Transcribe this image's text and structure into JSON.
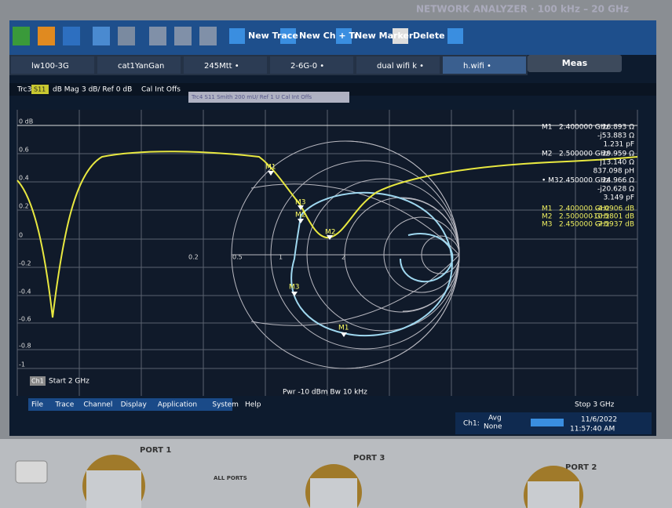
{
  "header": "NETWORK ANALYZER · 100 kHz – 20 GHz",
  "toolbar": {
    "buttons": [
      "New Trace",
      "New Ch + Tr",
      "New Marker",
      "Delete"
    ],
    "meas": "Meas"
  },
  "tabs": [
    "lw100-3G",
    "cat1YanGan",
    "245Mtt •",
    "2-6G-0 •",
    "dual wifi k •",
    "h.wifi •"
  ],
  "trace_info": {
    "trace": "Trc3",
    "param": "S11",
    "format": "dB Mag",
    "scale": "3 dB/ Ref 0 dB",
    "cal": "Cal Int Offs",
    "overlay": "Trc4 S11 Smith 200 mU/ Ref 1 U Cal Int Offs"
  },
  "y_labels": [
    "0 dB",
    "0.6",
    "0.4",
    "0.2",
    "0",
    "-0.2",
    "-0.4",
    "-0.6",
    "-0.8",
    "-1"
  ],
  "smith_labels": [
    "0.2",
    "0.5",
    "1",
    "2"
  ],
  "trace_markers": [
    "M1",
    "M3",
    "M2",
    "M2",
    "M3",
    "M1"
  ],
  "readout_smith": [
    {
      "marker": "M1",
      "freq": "2.400000 GHz",
      "lines": [
        "26.893 Ω",
        "-j53.883 Ω",
        "1.231 pF"
      ]
    },
    {
      "marker": "M2",
      "freq": "2.500000 GHz",
      "lines": [
        "29.959 Ω",
        "j13.140 Ω",
        "837.098 pH"
      ]
    },
    {
      "marker": "• M3",
      "freq": "2.450000 GHz",
      "lines": [
        "24.966 Ω",
        "-j20.628 Ω",
        "3.149 pF"
      ]
    }
  ],
  "readout_db": [
    {
      "marker": "M1",
      "freq": "2.400000 GHz",
      "value": "-4.0906 dB"
    },
    {
      "marker": "M2",
      "freq": "2.500000 GHz",
      "value": "-10.5801 dB"
    },
    {
      "marker": "M3",
      "freq": "2.450000 GHz",
      "value": "-7.5937 dB"
    }
  ],
  "channel": {
    "name": "Ch1",
    "start": "Start 2 GHz",
    "power": "Pwr -10 dBm Bw 10 kHz",
    "stop": "Stop 3 GHz"
  },
  "menu": [
    "File",
    "Trace",
    "Channel",
    "Display",
    "Application",
    "System",
    "Help"
  ],
  "status": {
    "ch": "Ch1:",
    "avg": "Avg",
    "none": "None",
    "date": "11/6/2022",
    "time": "11:57:40 AM"
  },
  "ports": [
    "PORT 1",
    "PORT 3",
    "PORT 2"
  ],
  "all_ports": "ALL PORTS"
}
